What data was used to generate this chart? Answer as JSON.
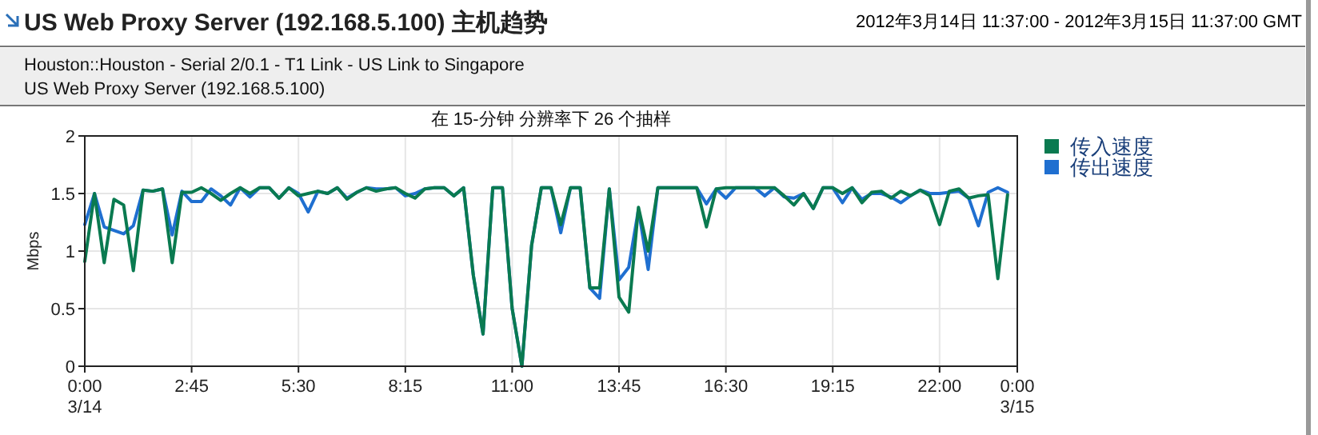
{
  "chart_data": {
    "type": "line",
    "title": "US Web Proxy Server (192.168.5.100) 主机趋势",
    "subtitle": "2012年3月14日  11:37:00 - 2012年3月15日  11:37:00 GMT",
    "annotations": [
      "Houston::Houston - Serial 2/0.1 - T1 Link - US Link to Singapore",
      "US Web Proxy Server (192.168.5.100)",
      "在 15-分钟 分辨率下 26 个抽样"
    ],
    "ylabel": "Mbps",
    "x": [
      0,
      0.25,
      0.5,
      0.75,
      1,
      1.25,
      1.5,
      1.75,
      2,
      2.25,
      2.5,
      2.75,
      3,
      3.25,
      3.5,
      3.75,
      4,
      4.25,
      4.5,
      4.75,
      5,
      5.25,
      5.5,
      5.75,
      6,
      6.25,
      6.5,
      6.75,
      7,
      7.25,
      7.5,
      7.75,
      8,
      8.25,
      8.5,
      8.75,
      9,
      9.25,
      9.5,
      9.75,
      10,
      10.25,
      10.5,
      10.75,
      11,
      11.25,
      11.5,
      11.75,
      12,
      12.25,
      12.5,
      12.75,
      13,
      13.25,
      13.5,
      13.75,
      14,
      14.25,
      14.5,
      14.75,
      15,
      15.25,
      15.5,
      15.75,
      16,
      16.25,
      16.5,
      16.75,
      17,
      17.25,
      17.5,
      17.75,
      18,
      18.25,
      18.5,
      18.75,
      19,
      19.25,
      19.5,
      19.75,
      20,
      20.25,
      20.5,
      20.75,
      21,
      21.25,
      21.5,
      21.75,
      22,
      22.25,
      22.5,
      22.75,
      23,
      23.25,
      23.5,
      23.75
    ],
    "series": [
      {
        "name": "传入速度",
        "color": "#0a7a50",
        "values": [
          0.91,
          1.5,
          0.9,
          1.45,
          1.4,
          0.83,
          1.53,
          1.52,
          1.54,
          0.9,
          1.51,
          1.51,
          1.55,
          1.5,
          1.44,
          1.5,
          1.55,
          1.5,
          1.55,
          1.55,
          1.46,
          1.55,
          1.48,
          1.5,
          1.52,
          1.5,
          1.55,
          1.45,
          1.51,
          1.55,
          1.52,
          1.54,
          1.55,
          1.5,
          1.46,
          1.54,
          1.55,
          1.55,
          1.48,
          1.55,
          0.79,
          0.28,
          1.55,
          1.55,
          0.5,
          0.0,
          1.05,
          1.55,
          1.55,
          1.23,
          1.55,
          1.55,
          0.68,
          0.68,
          1.54,
          0.6,
          0.47,
          1.38,
          1.0,
          1.55,
          1.55,
          1.55,
          1.55,
          1.55,
          1.21,
          1.54,
          1.55,
          1.55,
          1.55,
          1.55,
          1.55,
          1.55,
          1.48,
          1.4,
          1.5,
          1.37,
          1.55,
          1.55,
          1.5,
          1.55,
          1.42,
          1.51,
          1.52,
          1.46,
          1.52,
          1.48,
          1.53,
          1.48,
          1.23,
          1.52,
          1.54,
          1.46,
          1.48,
          1.49,
          0.76,
          1.49
        ]
      },
      {
        "name": "传出速度",
        "color": "#1f6fd0",
        "values": [
          1.23,
          1.5,
          1.21,
          1.18,
          1.15,
          1.22,
          1.53,
          1.52,
          1.54,
          1.14,
          1.52,
          1.43,
          1.43,
          1.54,
          1.48,
          1.4,
          1.55,
          1.47,
          1.55,
          1.55,
          1.46,
          1.55,
          1.5,
          1.34,
          1.52,
          1.5,
          1.55,
          1.46,
          1.51,
          1.55,
          1.54,
          1.54,
          1.55,
          1.48,
          1.5,
          1.54,
          1.55,
          1.55,
          1.48,
          1.55,
          0.79,
          0.28,
          1.55,
          1.55,
          0.5,
          0.0,
          1.05,
          1.55,
          1.55,
          1.16,
          1.55,
          1.55,
          0.68,
          0.59,
          1.54,
          0.75,
          0.86,
          1.36,
          0.84,
          1.55,
          1.55,
          1.55,
          1.55,
          1.55,
          1.41,
          1.54,
          1.46,
          1.55,
          1.55,
          1.55,
          1.48,
          1.55,
          1.47,
          1.46,
          1.5,
          1.37,
          1.55,
          1.55,
          1.42,
          1.55,
          1.45,
          1.5,
          1.5,
          1.47,
          1.42,
          1.48,
          1.53,
          1.5,
          1.5,
          1.51,
          1.52,
          1.46,
          1.22,
          1.51,
          1.55,
          1.51
        ]
      }
    ],
    "xlim": [
      0,
      24
    ],
    "xticks": [
      {
        "value": 0,
        "label": "0:00\n3/14"
      },
      {
        "value": 2.75,
        "label": "2:45"
      },
      {
        "value": 5.5,
        "label": "5:30"
      },
      {
        "value": 8.25,
        "label": "8:15"
      },
      {
        "value": 11,
        "label": "11:00"
      },
      {
        "value": 13.75,
        "label": "13:45"
      },
      {
        "value": 16.5,
        "label": "16:30"
      },
      {
        "value": 19.25,
        "label": "19:15"
      },
      {
        "value": 22,
        "label": "22:00"
      },
      {
        "value": 24,
        "label": "0:00\n3/15"
      }
    ],
    "ylim": [
      0,
      2
    ],
    "yticks": [
      0,
      0.5,
      1,
      1.5,
      2
    ],
    "grid": true,
    "legend": "right",
    "marker": "none",
    "line_style": "solid"
  }
}
